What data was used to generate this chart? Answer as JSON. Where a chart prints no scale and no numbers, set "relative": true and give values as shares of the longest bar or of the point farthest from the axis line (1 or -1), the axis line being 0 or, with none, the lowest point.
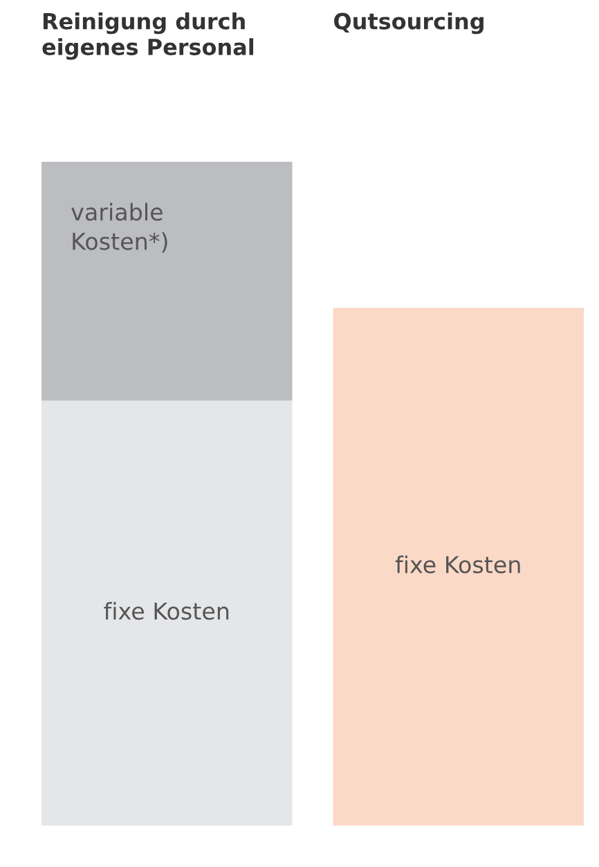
{
  "chart_data": {
    "type": "bar",
    "stacked": true,
    "relative": true,
    "categories": [
      "Reinigung durch eigenes Personal",
      "Qutsourcing"
    ],
    "series": [
      {
        "name": "fixe Kosten",
        "colors": [
          "#e5e6e8",
          "#fbd9c7"
        ],
        "values": [
          0.64,
          0.78
        ]
      },
      {
        "name": "variable Kosten*)",
        "colors": [
          "#bcbdc1",
          null
        ],
        "values": [
          0.36,
          null
        ]
      }
    ],
    "legend": false
  }
}
